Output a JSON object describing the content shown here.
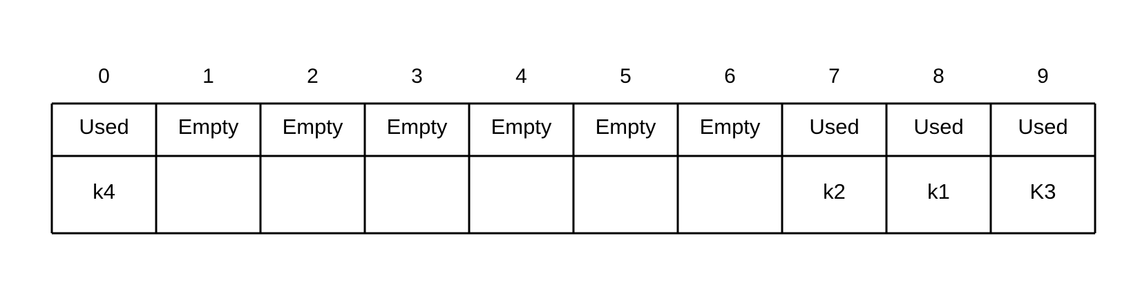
{
  "slots": [
    {
      "index": "0",
      "status": "Used",
      "key": "k4"
    },
    {
      "index": "1",
      "status": "Empty",
      "key": ""
    },
    {
      "index": "2",
      "status": "Empty",
      "key": ""
    },
    {
      "index": "3",
      "status": "Empty",
      "key": ""
    },
    {
      "index": "4",
      "status": "Empty",
      "key": ""
    },
    {
      "index": "5",
      "status": "Empty",
      "key": ""
    },
    {
      "index": "6",
      "status": "Empty",
      "key": ""
    },
    {
      "index": "7",
      "status": "Used",
      "key": "k2"
    },
    {
      "index": "8",
      "status": "Used",
      "key": "k1"
    },
    {
      "index": "9",
      "status": "Used",
      "key": "K3"
    }
  ],
  "colors": {
    "line": "#000000",
    "text": "#000000",
    "background": "#ffffff"
  }
}
